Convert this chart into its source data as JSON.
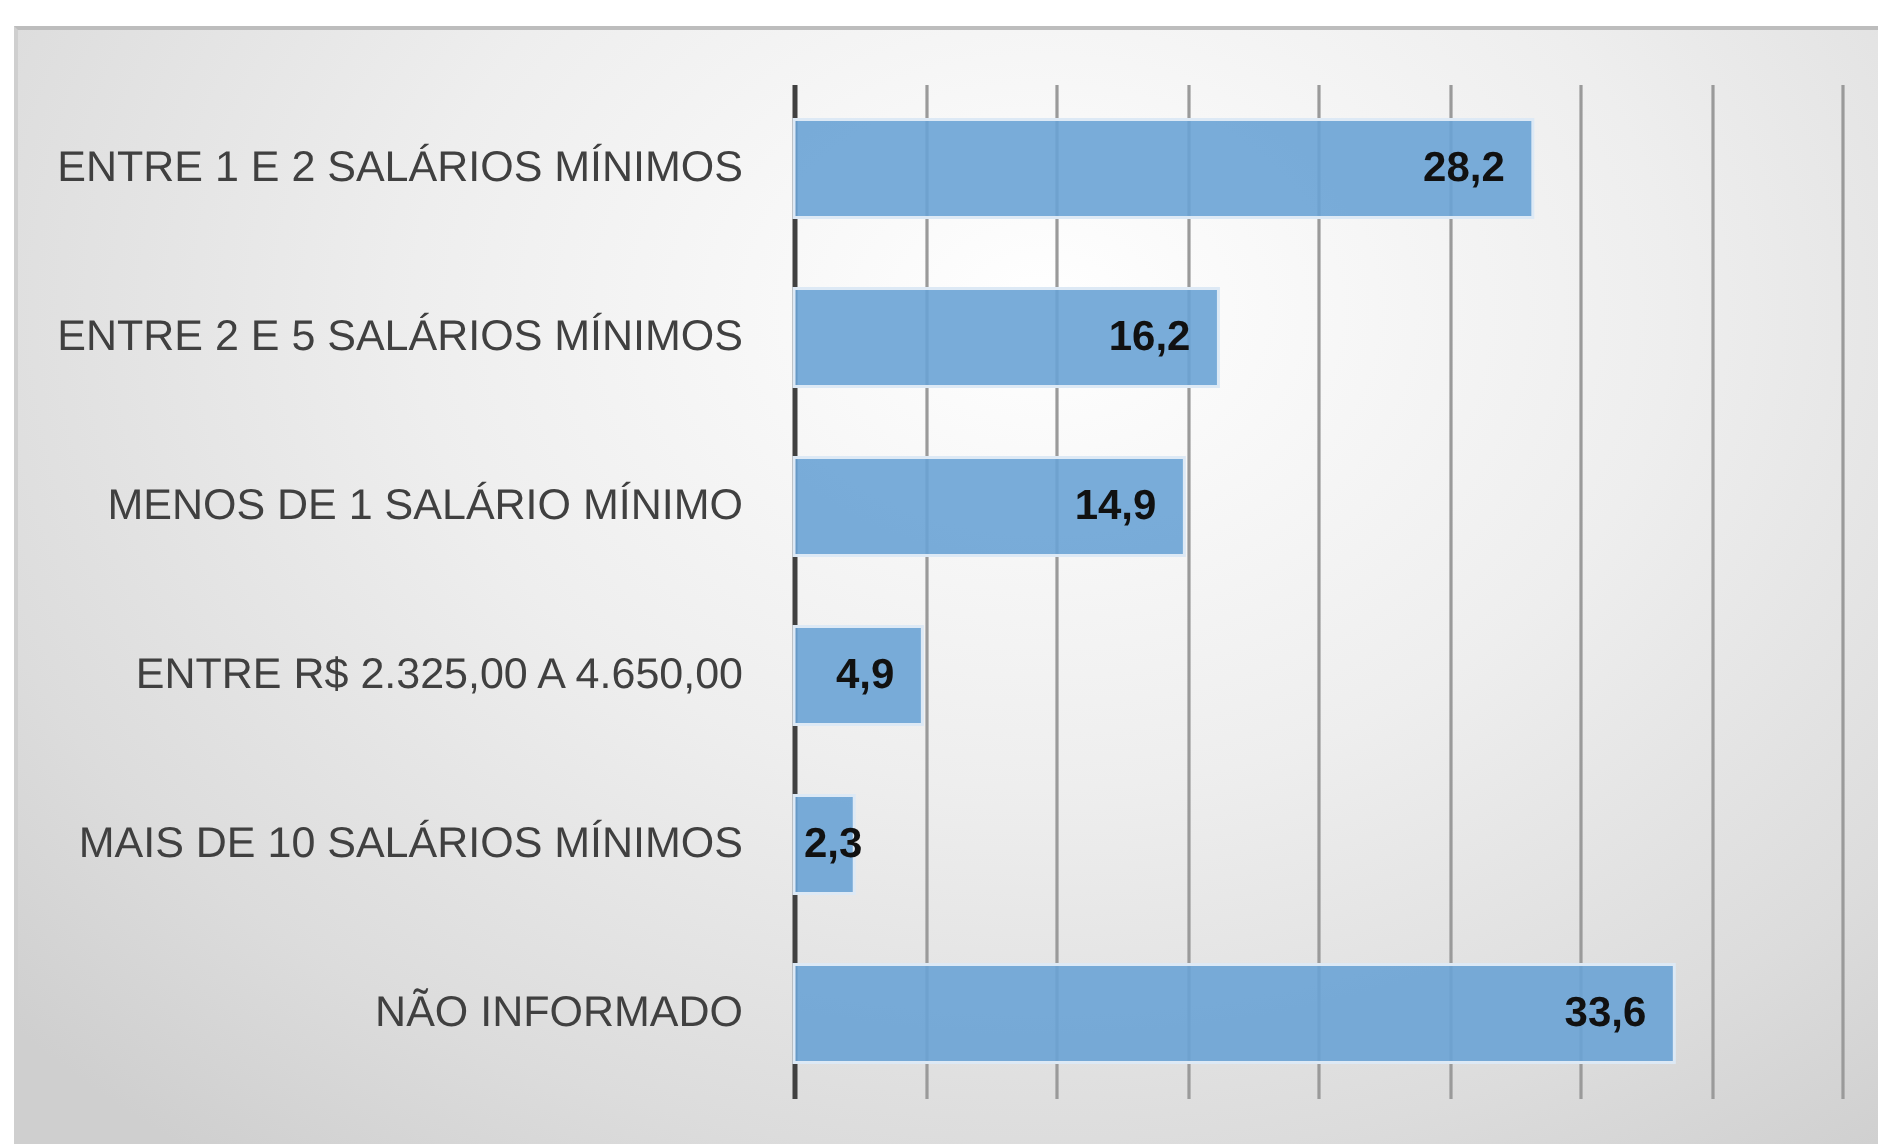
{
  "chart_data": {
    "type": "bar",
    "orientation": "horizontal",
    "categories": [
      "ENTRE 1 E 2 SALÁRIOS MÍNIMOS",
      "ENTRE 2 E 5 SALÁRIOS MÍNIMOS",
      "MENOS DE 1 SALÁRIO MÍNIMO",
      "ENTRE R$ 2.325,00 A 4.650,00",
      "MAIS DE 10 SALÁRIOS MÍNIMOS",
      "NÃO INFORMADO"
    ],
    "values": [
      28.2,
      16.2,
      14.9,
      4.9,
      2.3,
      33.6
    ],
    "value_labels": [
      "28,2",
      "16,2",
      "14,9",
      "4,9",
      "2,3",
      "33,6"
    ],
    "color": "#6aa3d5",
    "xlim": [
      0,
      40
    ],
    "xticks": [
      {
        "value": 0,
        "label": null
      },
      {
        "value": 5,
        "label": null
      },
      {
        "value": 10,
        "label": null
      },
      {
        "value": 15,
        "label": null
      },
      {
        "value": 20,
        "label": null
      },
      {
        "value": 25,
        "label": null
      },
      {
        "value": 30,
        "label": null
      },
      {
        "value": 35,
        "label": null
      },
      {
        "value": 40,
        "label": null
      }
    ],
    "grid": "x",
    "tick_labels": "y"
  }
}
